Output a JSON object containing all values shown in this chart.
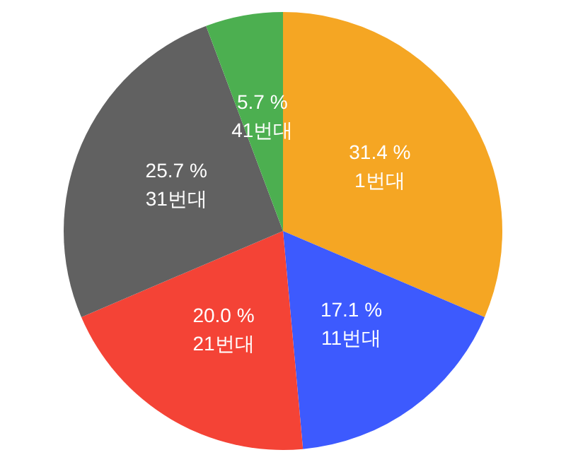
{
  "chart_data": {
    "type": "pie",
    "categories": [
      "1번대",
      "11번대",
      "21번대",
      "31번대",
      "41번대"
    ],
    "values": [
      31.4,
      17.1,
      20.0,
      25.7,
      5.7
    ],
    "value_labels": [
      "31.4 %",
      "17.1 %",
      "20.0 %",
      "25.7 %",
      "5.7 %"
    ],
    "colors": [
      "#f5a623",
      "#3d5afe",
      "#f44336",
      "#616161",
      "#4caf50"
    ]
  }
}
